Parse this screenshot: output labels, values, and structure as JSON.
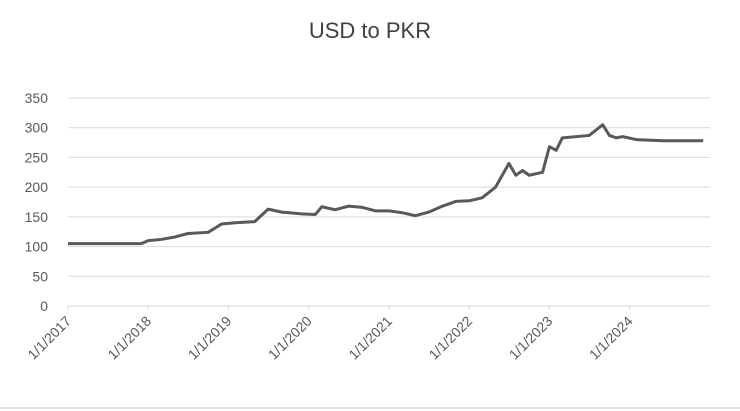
{
  "chart_data": {
    "type": "line",
    "title": "USD to PKR",
    "x": [
      "2017-01-01",
      "2017-04-01",
      "2017-07-01",
      "2017-10-01",
      "2017-12-01",
      "2018-01-01",
      "2018-03-01",
      "2018-05-01",
      "2018-07-01",
      "2018-10-01",
      "2018-12-01",
      "2019-02-01",
      "2019-05-01",
      "2019-07-01",
      "2019-09-01",
      "2019-12-01",
      "2020-02-01",
      "2020-03-01",
      "2020-05-01",
      "2020-07-01",
      "2020-09-01",
      "2020-11-01",
      "2021-01-01",
      "2021-03-01",
      "2021-05-01",
      "2021-07-01",
      "2021-09-01",
      "2021-11-01",
      "2022-01-01",
      "2022-03-01",
      "2022-05-01",
      "2022-07-01",
      "2022-08-01",
      "2022-09-01",
      "2022-10-01",
      "2022-12-01",
      "2023-01-01",
      "2023-02-01",
      "2023-03-01",
      "2023-07-01",
      "2023-09-01",
      "2023-10-01",
      "2023-11-01",
      "2023-12-01",
      "2024-02-01",
      "2024-06-01",
      "2024-12-01"
    ],
    "series": [
      {
        "name": "USD to PKR",
        "color": "#595959",
        "values": [
          105,
          105,
          105,
          105,
          105,
          110,
          112,
          116,
          122,
          124,
          138,
          140,
          142,
          163,
          158,
          155,
          154,
          167,
          162,
          168,
          166,
          160,
          160,
          157,
          152,
          158,
          168,
          176,
          177,
          182,
          200,
          240,
          220,
          228,
          220,
          225,
          268,
          262,
          283,
          287,
          305,
          287,
          283,
          285,
          280,
          278,
          278
        ]
      }
    ],
    "xlim": [
      "2017-01-01",
      "2025-01-01"
    ],
    "xticks": [
      {
        "value": "2017-01-01",
        "label": "1/1/2017"
      },
      {
        "value": "2018-01-01",
        "label": "1/1/2018"
      },
      {
        "value": "2019-01-01",
        "label": "1/1/2019"
      },
      {
        "value": "2020-01-01",
        "label": "1/1/2020"
      },
      {
        "value": "2021-01-01",
        "label": "1/1/2021"
      },
      {
        "value": "2022-01-01",
        "label": "1/1/2022"
      },
      {
        "value": "2023-01-01",
        "label": "1/1/2023"
      },
      {
        "value": "2024-01-01",
        "label": "1/1/2024"
      }
    ],
    "ylim": [
      0,
      350
    ],
    "yticks": [
      0,
      50,
      100,
      150,
      200,
      250,
      300,
      350
    ],
    "grid": true
  }
}
